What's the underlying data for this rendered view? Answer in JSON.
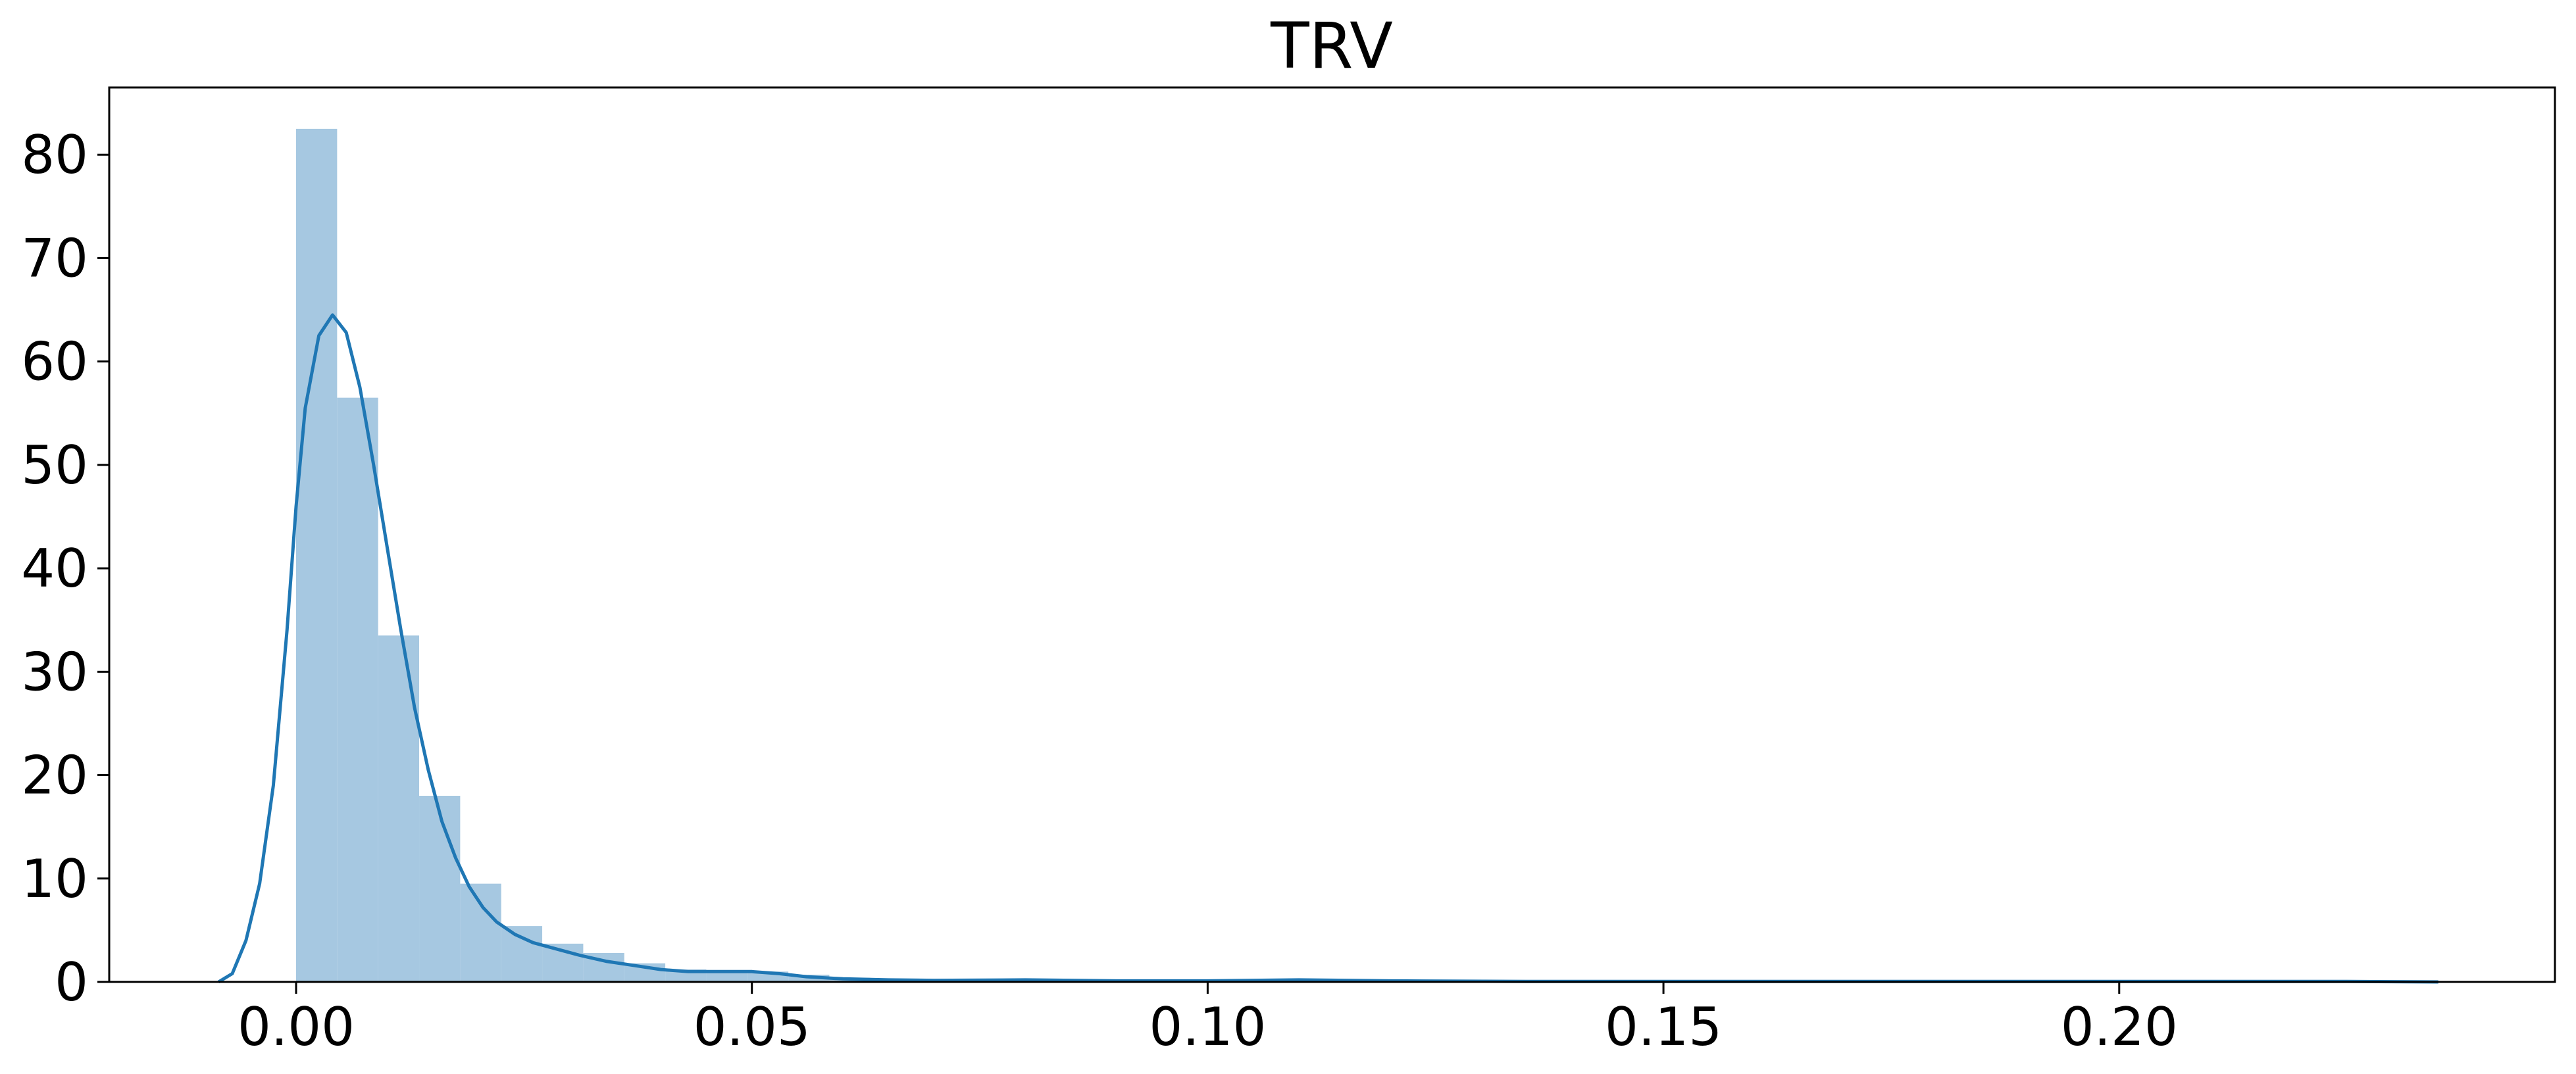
{
  "chart_data": {
    "type": "histogram",
    "title": "TRV",
    "xlabel": "",
    "ylabel": "",
    "xlim": [
      -0.0205,
      0.2478
    ],
    "ylim": [
      0,
      86.5
    ],
    "grid": false,
    "legend": null,
    "colors": {
      "bars": "#a6c8e1",
      "kde": "#1f77b4"
    },
    "x_ticks": [
      {
        "value": 0.0,
        "label": "0.00"
      },
      {
        "value": 0.05,
        "label": "0.05"
      },
      {
        "value": 0.1,
        "label": "0.10"
      },
      {
        "value": 0.15,
        "label": "0.15"
      },
      {
        "value": 0.2,
        "label": "0.20"
      }
    ],
    "y_ticks": [
      {
        "value": 0,
        "label": "0"
      },
      {
        "value": 10,
        "label": "10"
      },
      {
        "value": 20,
        "label": "20"
      },
      {
        "value": 30,
        "label": "30"
      },
      {
        "value": 40,
        "label": "40"
      },
      {
        "value": 50,
        "label": "50"
      },
      {
        "value": 60,
        "label": "60"
      },
      {
        "value": 70,
        "label": "70"
      },
      {
        "value": 80,
        "label": "80"
      }
    ],
    "histogram": {
      "bin_width": 0.0045,
      "bins": [
        {
          "x0": 0.0,
          "x1": 0.0045,
          "density": 82.5
        },
        {
          "x0": 0.0045,
          "x1": 0.009,
          "density": 56.5
        },
        {
          "x0": 0.009,
          "x1": 0.0135,
          "density": 33.5
        },
        {
          "x0": 0.0135,
          "x1": 0.018,
          "density": 18.0
        },
        {
          "x0": 0.018,
          "x1": 0.0225,
          "density": 9.5
        },
        {
          "x0": 0.0225,
          "x1": 0.027,
          "density": 5.4
        },
        {
          "x0": 0.027,
          "x1": 0.0315,
          "density": 3.7
        },
        {
          "x0": 0.0315,
          "x1": 0.036,
          "density": 2.8
        },
        {
          "x0": 0.036,
          "x1": 0.0405,
          "density": 1.8
        },
        {
          "x0": 0.0405,
          "x1": 0.045,
          "density": 1.2
        },
        {
          "x0": 0.045,
          "x1": 0.0495,
          "density": 0.9
        },
        {
          "x0": 0.0495,
          "x1": 0.054,
          "density": 1.0
        },
        {
          "x0": 0.054,
          "x1": 0.0585,
          "density": 0.7
        },
        {
          "x0": 0.0585,
          "x1": 0.063,
          "density": 0.4
        },
        {
          "x0": 0.063,
          "x1": 0.0675,
          "density": 0.3
        },
        {
          "x0": 0.0675,
          "x1": 0.072,
          "density": 0.2
        },
        {
          "x0": 0.072,
          "x1": 0.0765,
          "density": 0.2
        },
        {
          "x0": 0.0765,
          "x1": 0.081,
          "density": 0.2
        },
        {
          "x0": 0.081,
          "x1": 0.0855,
          "density": 0.2
        },
        {
          "x0": 0.0855,
          "x1": 0.09,
          "density": 0.1
        },
        {
          "x0": 0.09,
          "x1": 0.0945,
          "density": 0.1
        },
        {
          "x0": 0.0945,
          "x1": 0.099,
          "density": 0.1
        },
        {
          "x0": 0.099,
          "x1": 0.1035,
          "density": 0.1
        },
        {
          "x0": 0.1035,
          "x1": 0.108,
          "density": 0.1
        },
        {
          "x0": 0.108,
          "x1": 0.1125,
          "density": 0.2
        },
        {
          "x0": 0.1125,
          "x1": 0.117,
          "density": 0.1
        },
        {
          "x0": 0.117,
          "x1": 0.1215,
          "density": 0.1
        },
        {
          "x0": 0.1485,
          "x1": 0.153,
          "density": 0.1
        },
        {
          "x0": 0.1845,
          "x1": 0.189,
          "density": 0.1
        },
        {
          "x0": 0.2295,
          "x1": 0.234,
          "density": 0.1
        }
      ]
    },
    "kde": {
      "x": [
        -0.0085,
        -0.007,
        -0.0055,
        -0.004,
        -0.0025,
        -0.001,
        0.0,
        0.001,
        0.0025,
        0.004,
        0.0055,
        0.007,
        0.0085,
        0.01,
        0.0115,
        0.013,
        0.0145,
        0.016,
        0.0175,
        0.019,
        0.0205,
        0.022,
        0.024,
        0.026,
        0.0285,
        0.031,
        0.034,
        0.037,
        0.04,
        0.043,
        0.046,
        0.05,
        0.053,
        0.056,
        0.06,
        0.065,
        0.07,
        0.08,
        0.09,
        0.1,
        0.11,
        0.12,
        0.135,
        0.15,
        0.165,
        0.18,
        0.195,
        0.21,
        0.225,
        0.235
      ],
      "y": [
        0.0,
        0.8,
        4.0,
        9.5,
        19.0,
        34.0,
        46.0,
        55.5,
        62.5,
        64.5,
        62.8,
        57.5,
        50.0,
        42.0,
        34.0,
        26.5,
        20.5,
        15.5,
        12.0,
        9.2,
        7.2,
        5.8,
        4.6,
        3.8,
        3.2,
        2.6,
        2.0,
        1.6,
        1.2,
        1.0,
        1.0,
        1.0,
        0.8,
        0.5,
        0.3,
        0.2,
        0.15,
        0.2,
        0.1,
        0.1,
        0.2,
        0.1,
        0.05,
        0.05,
        0.05,
        0.05,
        0.05,
        0.05,
        0.05,
        0.0
      ]
    }
  }
}
